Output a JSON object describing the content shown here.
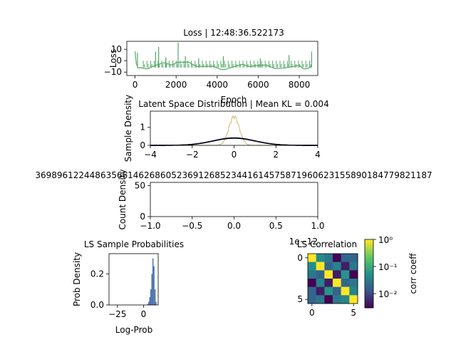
{
  "chart_data": [
    {
      "id": "loss",
      "type": "line",
      "title": "Loss | 12:48:36.522173",
      "xlabel": "Epoch",
      "ylabel": "Loss",
      "xlim": [
        -400,
        8900
      ],
      "ylim": [
        -13,
        17
      ],
      "xticks": [
        "0",
        "2000",
        "4000",
        "6000",
        "8000"
      ],
      "yticks": [
        "10",
        "0",
        "−10"
      ],
      "color": "#55a868",
      "series": [
        {
          "x": [
            0,
            60,
            150,
            300,
            600,
            1000,
            1400,
            1800,
            2000,
            2200,
            2600,
            3000,
            3400,
            3800,
            4200,
            4400,
            4800,
            5200,
            5600,
            6000,
            6400,
            6800,
            7200,
            7600,
            8000,
            8200,
            8400,
            8600
          ],
          "y": [
            10,
            -2,
            -7,
            -8,
            -6,
            -4,
            -3,
            -2,
            -1,
            -2,
            -3,
            -4,
            -5,
            -6,
            -6,
            -7,
            -6,
            -5,
            -4,
            -4,
            -5,
            -5,
            -6,
            -6,
            -6,
            -6,
            -7,
            -6
          ],
          "spikes": [
            [
              120,
              7
            ],
            [
              1000,
              8
            ],
            [
              1150,
              12
            ],
            [
              1500,
              3
            ],
            [
              2100,
              16
            ],
            [
              2450,
              4
            ],
            [
              3100,
              2
            ],
            [
              4300,
              4
            ],
            [
              6100,
              2
            ],
            [
              7500,
              5
            ],
            [
              8600,
              8
            ]
          ]
        }
      ]
    },
    {
      "id": "latent",
      "type": "line",
      "title": "Latent Space Distribution | Mean KL = 0.004",
      "ylabel": "Sample Density",
      "xlim": [
        -4,
        4
      ],
      "ylim": [
        0,
        1.9
      ],
      "xticks": [
        "−4",
        "−2",
        "0",
        "2",
        "4"
      ],
      "yticks": [
        "0",
        "1"
      ],
      "series": [
        {
          "color": "#c9b25e",
          "sigma": 0.25,
          "peak": 1.6
        },
        {
          "color": "#3c3cb4",
          "sigma": 1.0,
          "peak": 0.42
        },
        {
          "color": "#1a1a6e",
          "sigma": 1.0,
          "peak": 0.4
        },
        {
          "color": "#000000",
          "sigma": 1.0,
          "peak": 0.4
        }
      ]
    },
    {
      "id": "counts",
      "type": "bar",
      "title": "3698961224486356614626860523691268523441614575871960623155890184779821187",
      "ylabel": "Count Density",
      "offset_label": "1e−12",
      "xlim": [
        -1,
        1
      ],
      "ylim": [
        0,
        55
      ],
      "xticks": [
        "−1.0",
        "−0.5",
        "0.0",
        "0.5",
        "1.0"
      ],
      "yticks": [
        "0",
        "50"
      ]
    },
    {
      "id": "sample_prob",
      "type": "bar",
      "title": "LS Sample Probabilities",
      "xlabel": "Log-Prob",
      "ylabel": "Prob Density",
      "xlim": [
        -33,
        14
      ],
      "ylim": [
        0,
        0.33
      ],
      "xticks": [
        "−25",
        "0"
      ],
      "yticks": [
        "0.0",
        "0.2"
      ],
      "color": "#4c72b0",
      "bins": [
        [
          4,
          0.005
        ],
        [
          5,
          0.02
        ],
        [
          6,
          0.05
        ],
        [
          7,
          0.1
        ],
        [
          8,
          0.2
        ],
        [
          9,
          0.3
        ],
        [
          10,
          0.25
        ],
        [
          11,
          0.1
        ],
        [
          12,
          0.02
        ]
      ]
    },
    {
      "id": "correlation",
      "type": "heatmap",
      "title": "LS Correlation",
      "colorbar_label": "corr coeff",
      "xticks": [
        "0",
        "5"
      ],
      "yticks": [
        "0",
        "5"
      ],
      "colorbar_ticks": [
        "10⁰",
        "10⁻¹",
        "10⁻²"
      ],
      "matrix": [
        [
          1.0,
          0.05,
          0.03,
          0.003,
          0.02,
          0.02
        ],
        [
          0.05,
          1.0,
          0.02,
          0.04,
          0.005,
          0.03
        ],
        [
          0.03,
          0.02,
          1.0,
          0.005,
          0.06,
          0.003
        ],
        [
          0.003,
          0.04,
          0.005,
          1.0,
          0.02,
          0.03
        ],
        [
          0.02,
          0.005,
          0.06,
          0.02,
          1.0,
          0.04
        ],
        [
          0.02,
          0.03,
          0.003,
          0.03,
          0.04,
          1.0
        ]
      ]
    }
  ]
}
